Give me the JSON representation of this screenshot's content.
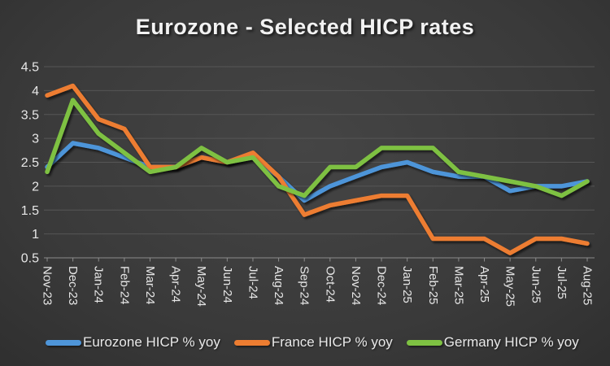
{
  "chart_data": {
    "type": "line",
    "title": "Eurozone - Selected HICP rates",
    "x": [
      "Nov-23",
      "Dec-23",
      "Jan-24",
      "Feb-24",
      "Mar-24",
      "Apr-24",
      "May-24",
      "Jun-24",
      "Jul-24",
      "Aug-24",
      "Sep-24",
      "Oct-24",
      "Nov-24",
      "Dec-24",
      "Jan-25",
      "Feb-25",
      "Mar-25",
      "Apr-25",
      "May-25",
      "Jun-25",
      "Jul-25",
      "Aug-25"
    ],
    "series": [
      {
        "name": "Eurozone HICP % yoy",
        "color": "#4E95D9",
        "values": [
          2.4,
          2.9,
          2.8,
          2.6,
          2.4,
          2.4,
          2.6,
          2.5,
          2.6,
          2.2,
          1.7,
          2.0,
          2.2,
          2.4,
          2.5,
          2.3,
          2.2,
          2.2,
          1.9,
          2.0,
          2.0,
          2.1
        ]
      },
      {
        "name": "France HICP % yoy",
        "color": "#ED7D31",
        "values": [
          3.9,
          4.1,
          3.4,
          3.2,
          2.4,
          2.4,
          2.6,
          2.5,
          2.7,
          2.2,
          1.4,
          1.6,
          1.7,
          1.8,
          1.8,
          0.9,
          0.9,
          0.9,
          0.6,
          0.9,
          0.9,
          0.8
        ]
      },
      {
        "name": "Germany HICP % yoy",
        "color": "#7EC142",
        "values": [
          2.3,
          3.8,
          3.1,
          2.7,
          2.3,
          2.4,
          2.8,
          2.5,
          2.6,
          2.0,
          1.8,
          2.4,
          2.4,
          2.8,
          2.8,
          2.8,
          2.3,
          2.2,
          2.1,
          2.0,
          1.8,
          2.1
        ]
      }
    ],
    "xlabel": "",
    "ylabel": "",
    "ylim": [
      0.5,
      4.5
    ],
    "ytick_step": 0.5,
    "grid": "horizontal",
    "legend_position": "bottom",
    "x_label_rotation": 90
  },
  "style": {
    "gridline_color": "#565656",
    "axis_color": "#8c8c8c",
    "tick_label_color": "#e6e6e6"
  }
}
